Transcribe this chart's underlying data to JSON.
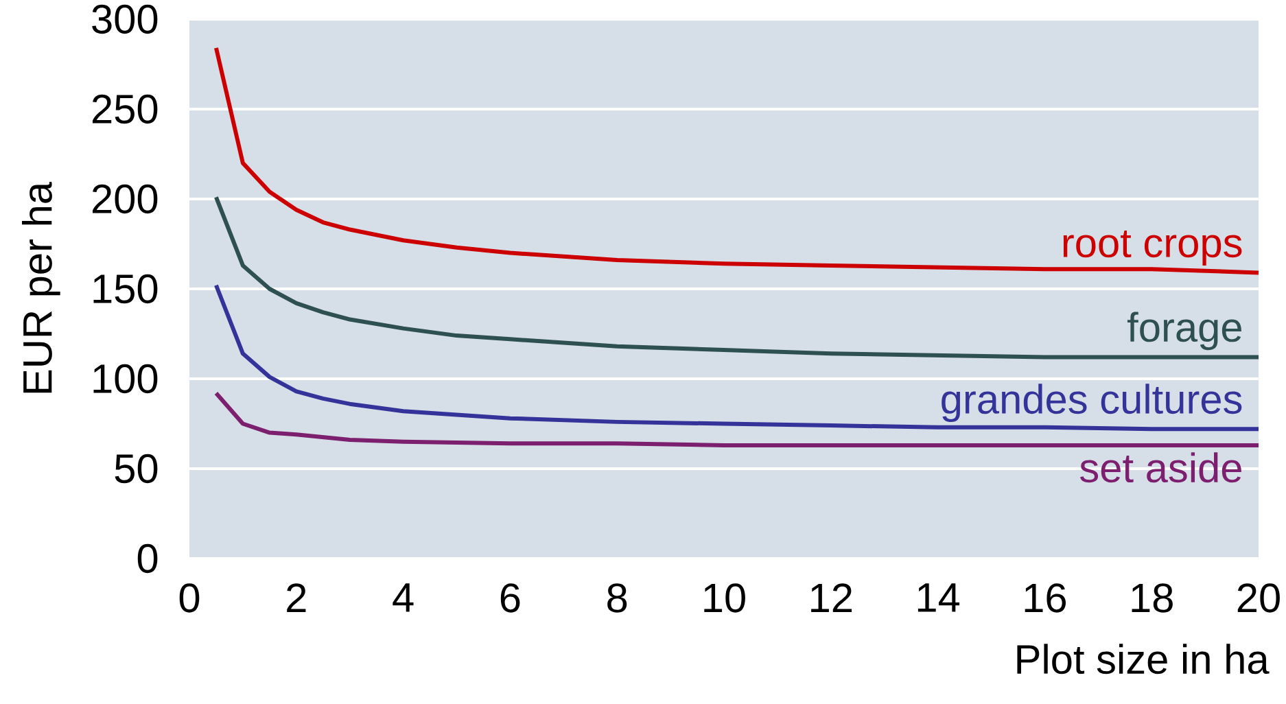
{
  "chart_data": {
    "type": "line",
    "xlabel": "Plot size in ha",
    "ylabel": "EUR per ha",
    "xlim": [
      0,
      20
    ],
    "ylim": [
      0,
      300
    ],
    "xticks": [
      0,
      2,
      4,
      6,
      8,
      10,
      12,
      14,
      16,
      18,
      20
    ],
    "yticks": [
      0,
      50,
      100,
      150,
      200,
      250,
      300
    ],
    "grid": "y",
    "marker": "none",
    "line_style": "solid",
    "series": [
      {
        "name": "root crops",
        "color": "#cc0000",
        "x": [
          0.5,
          1,
          1.5,
          2,
          2.5,
          3,
          4,
          5,
          6,
          7,
          8,
          10,
          12,
          14,
          16,
          18,
          20
        ],
        "values": [
          284,
          220,
          204,
          194,
          187,
          183,
          177,
          173,
          170,
          168,
          166,
          164,
          163,
          162,
          161,
          161,
          159
        ]
      },
      {
        "name": "forage",
        "color": "#2f5050",
        "x": [
          0.5,
          1,
          1.5,
          2,
          2.5,
          3,
          4,
          5,
          6,
          7,
          8,
          10,
          12,
          14,
          16,
          18,
          20
        ],
        "values": [
          201,
          163,
          150,
          142,
          137,
          133,
          128,
          124,
          122,
          120,
          118,
          116,
          114,
          113,
          112,
          112,
          112
        ]
      },
      {
        "name": "grandes cultures",
        "color": "#333399",
        "x": [
          0.5,
          1,
          1.5,
          2,
          2.5,
          3,
          4,
          5,
          6,
          8,
          10,
          12,
          14,
          16,
          18,
          20
        ],
        "values": [
          152,
          114,
          101,
          93,
          89,
          86,
          82,
          80,
          78,
          76,
          75,
          74,
          73,
          73,
          72,
          72
        ]
      },
      {
        "name": "set aside",
        "color": "#7b1f6e",
        "x": [
          0.5,
          1,
          1.5,
          2,
          3,
          4,
          6,
          8,
          10,
          12,
          16,
          20
        ],
        "values": [
          92,
          75,
          70,
          69,
          66,
          65,
          64,
          64,
          63,
          63,
          63,
          63
        ]
      }
    ]
  }
}
